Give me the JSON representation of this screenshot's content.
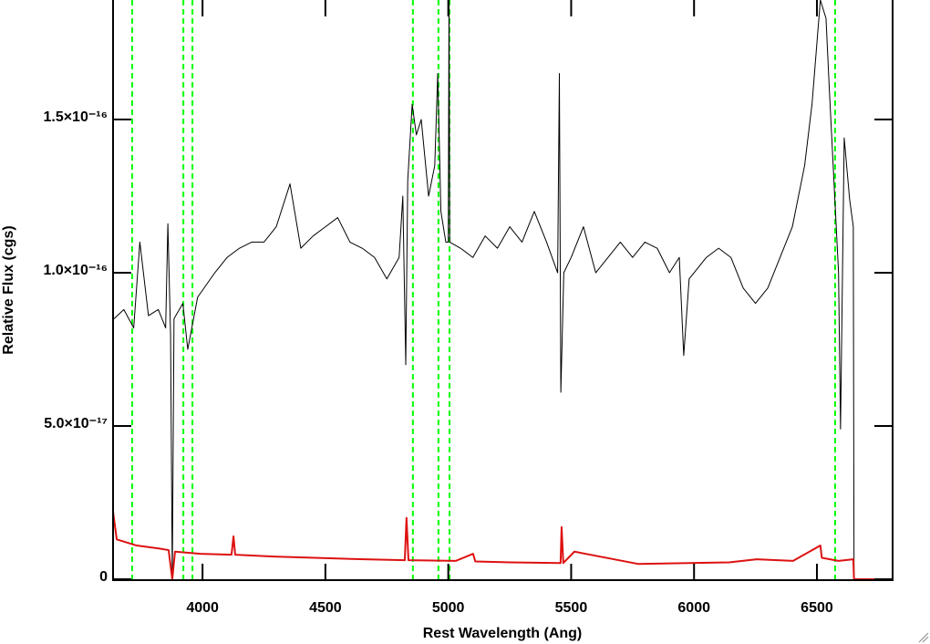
{
  "chart_data": {
    "type": "line",
    "xlabel": "Rest Wavelength (Ang)",
    "ylabel": "Relative Flux (cgs)",
    "xlim": [
      3636,
      6808
    ],
    "ylim": [
      -3e-19,
      1.89e-16
    ],
    "xticks": [
      4000,
      4500,
      5000,
      5500,
      6000,
      6500
    ],
    "yticks": [
      0,
      {
        "value": 5e-17,
        "label": "5.0×10⁻¹⁷"
      },
      {
        "value": 1e-16,
        "label": "1.0×10⁻¹⁶"
      },
      {
        "value": 1.5e-16,
        "label": "1.5×10⁻¹⁶"
      }
    ],
    "vlines": [
      3714,
      3922,
      3959,
      4856,
      4960,
      5005,
      6574
    ],
    "vline_color": "#00ff00",
    "series": [
      {
        "color": "#000000",
        "x": [
          3640,
          3680,
          3720,
          3745,
          3780,
          3820,
          3850,
          3859,
          3870,
          3877,
          3884,
          3920,
          3940,
          3980,
          4050,
          4100,
          4150,
          4200,
          4250,
          4300,
          4356,
          4400,
          4450,
          4500,
          4550,
          4600,
          4650,
          4700,
          4750,
          4800,
          4815,
          4827,
          4835,
          4853,
          4870,
          4890,
          4920,
          4945,
          4957,
          4970,
          4990,
          5000,
          5003,
          5006,
          5050,
          5100,
          5150,
          5200,
          5250,
          5300,
          5350,
          5400,
          5445,
          5452,
          5458,
          5470,
          5500,
          5550,
          5600,
          5650,
          5700,
          5750,
          5800,
          5850,
          5900,
          5940,
          5958,
          5980,
          6050,
          6100,
          6150,
          6200,
          6250,
          6300,
          6350,
          6400,
          6450,
          6480,
          6500,
          6514,
          6537,
          6551,
          6588,
          6596,
          6611,
          6633,
          6648,
          6651
        ],
        "values": [
          8.5e-17,
          8.8e-17,
          8.2e-17,
          1.1e-16,
          8.6e-17,
          8.8e-17,
          8.2e-17,
          1.16e-16,
          8e-17,
          0,
          8.5e-17,
          9e-17,
          7.5e-17,
          9.2e-17,
          1e-16,
          1.05e-16,
          1.08e-16,
          1.1e-16,
          1.1e-16,
          1.15e-16,
          1.29e-16,
          1.08e-16,
          1.12e-16,
          1.15e-16,
          1.18e-16,
          1.1e-16,
          1.08e-16,
          1.05e-16,
          9.8e-17,
          1.05e-16,
          1.25e-16,
          7e-17,
          1.3e-16,
          1.55e-16,
          1.45e-16,
          1.5e-16,
          1.25e-16,
          1.35e-16,
          1.65e-16,
          1.2e-16,
          1.1e-16,
          1.1e-16,
          1.89e-16,
          1.1e-16,
          1.08e-16,
          1.05e-16,
          1.12e-16,
          1.08e-16,
          1.15e-16,
          1.1e-16,
          1.2e-16,
          1.1e-16,
          1e-16,
          1.65e-16,
          6.1e-17,
          1e-16,
          1.05e-16,
          1.15e-16,
          1e-16,
          1.05e-16,
          1.1e-16,
          1.05e-16,
          1.1e-16,
          1.08e-16,
          1e-16,
          1.05e-16,
          7.3e-17,
          9.8e-17,
          1.05e-16,
          1.08e-16,
          1.05e-16,
          9.5e-17,
          9e-17,
          9.5e-17,
          1.05e-16,
          1.15e-16,
          1.35e-16,
          1.55e-16,
          1.75e-16,
          1.89e-16,
          1.83e-16,
          1.59e-16,
          1e-16,
          4.9e-17,
          1.44e-16,
          1.24e-16,
          1.15e-16,
          0
        ]
      },
      {
        "color": "#dd1111",
        "x": [
          3636,
          3651,
          3732,
          3825,
          3862,
          3877,
          3888,
          3992,
          4118,
          4126,
          4133,
          4289,
          4660,
          4823,
          4830,
          4838,
          5031,
          5101,
          5110,
          5253,
          5457,
          5461,
          5468,
          5513,
          5772,
          6143,
          6255,
          6403,
          6514,
          6520,
          6588,
          6648,
          6651,
          6807
        ],
        "values": [
          2.2e-17,
          1.3e-17,
          1.1e-17,
          1e-17,
          9.5e-18,
          0,
          9e-18,
          8.3e-18,
          8e-18,
          1.4e-17,
          8e-18,
          7.4e-18,
          6.5e-18,
          6.2e-18,
          2e-17,
          6.2e-18,
          6e-18,
          8.3e-18,
          5.8e-18,
          5.5e-18,
          5.3e-18,
          1.7e-17,
          5.3e-18,
          9e-18,
          5e-18,
          5.5e-18,
          6.5e-18,
          6e-18,
          1.1e-17,
          7e-18,
          6e-18,
          6.5e-18,
          0,
          0
        ]
      }
    ]
  }
}
